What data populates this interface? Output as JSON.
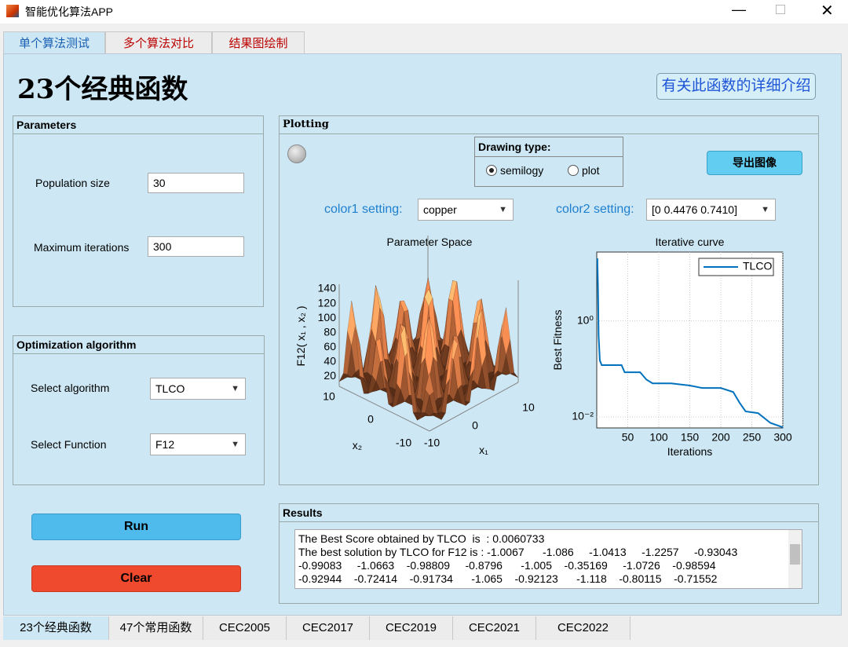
{
  "window": {
    "title": "智能优化算法APP"
  },
  "tabs": [
    "单个算法测试",
    "多个算法对比",
    "结果图绘制"
  ],
  "header": {
    "title": "23个经典函数",
    "button": "有关此函数的详细介绍"
  },
  "parameters": {
    "title": "Parameters",
    "population_label": "Population size",
    "population_value": "30",
    "iterations_label": "Maximum iterations",
    "iterations_value": "300"
  },
  "optimization": {
    "title": "Optimization algorithm",
    "algorithm_label": "Select algorithm",
    "algorithm_value": "TLCO",
    "function_label": "Select Function",
    "function_value": "F12"
  },
  "buttons": {
    "run": "Run",
    "clear": "Clear"
  },
  "plotting": {
    "title": "Plotting",
    "drawing_type_title": "Drawing type:",
    "options": [
      "semilogy",
      "plot"
    ],
    "export": "导出图像",
    "color1_label": "color1 setting:",
    "color1_value": "copper",
    "color2_label": "color2 setting:",
    "color2_value": "[0 0.4476 0.7410]"
  },
  "surface_plot": {
    "title": "Parameter Space",
    "zlabel": "F12( x₁ , x₂ )",
    "x1label": "x₁",
    "x2label": "x₂",
    "zticks": [
      20,
      40,
      60,
      80,
      100,
      120,
      140
    ],
    "x2ticks": [
      10,
      0,
      -10
    ],
    "x1ticks": [
      -10,
      0,
      10
    ]
  },
  "curve_plot": {
    "type": "line",
    "title": "Iterative curve",
    "xlabel": "Iterations",
    "ylabel": "Best Fitness",
    "legend": "TLCO",
    "color": "#0072bd",
    "yscale": "log",
    "grid": true,
    "xlim": [
      0,
      300
    ],
    "xticks": [
      50,
      100,
      150,
      200,
      250,
      300
    ],
    "ylim": [
      0.0059,
      27
    ],
    "yticks": [
      {
        "value": 0.01,
        "label": "10⁻²"
      },
      {
        "value": 1,
        "label": "10⁰"
      }
    ],
    "x": [
      1,
      2,
      3,
      5,
      8,
      40,
      45,
      70,
      80,
      90,
      120,
      150,
      170,
      200,
      220,
      230,
      240,
      260,
      280,
      300
    ],
    "values": [
      20,
      5,
      0.5,
      0.15,
      0.12,
      0.12,
      0.085,
      0.085,
      0.06,
      0.05,
      0.05,
      0.045,
      0.04,
      0.04,
      0.033,
      0.02,
      0.013,
      0.012,
      0.0075,
      0.0060733
    ]
  },
  "results": {
    "title": "Results",
    "lines": [
      "The Best Score obtained by TLCO  is  : 0.0060733",
      "The best solution by TLCO for F12 is : -1.0067      -1.086     -1.0413     -1.2257     -0.93043",
      "-0.99083     -1.0663    -0.98809     -0.8796      -1.005    -0.35169     -1.0726    -0.98594",
      "-0.92944    -0.72414    -0.91734      -1.065    -0.92123      -1.118    -0.80115    -0.71552"
    ]
  },
  "bottom_tabs": [
    "23个经典函数",
    "47个常用函数",
    "CEC2005",
    "CEC2017",
    "CEC2019",
    "CEC2021",
    "CEC2022"
  ]
}
